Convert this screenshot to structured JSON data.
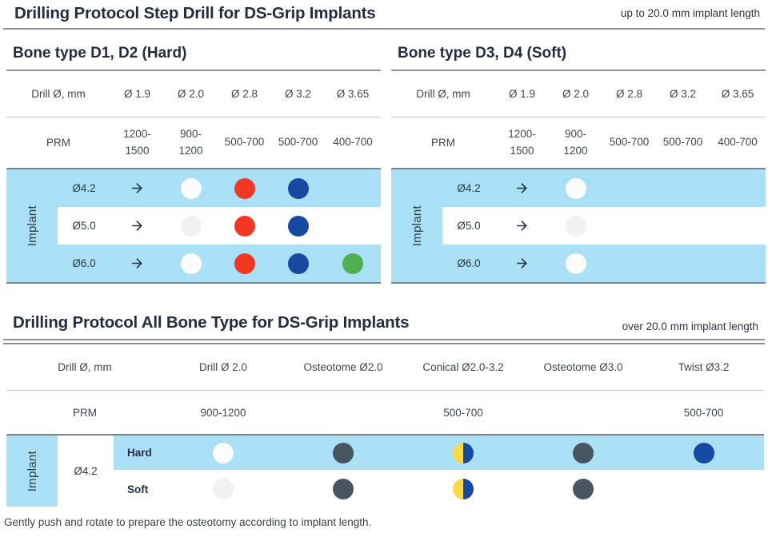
{
  "colors": {
    "accent_blue_bg": "#a9e0f5",
    "title_navy": "#222d42",
    "dot_red": "#f23722",
    "dot_blue": "#1649a1",
    "dot_green": "#4fae4f",
    "dot_gray": "#475560",
    "dot_yellow": "#fcd94b",
    "dot_white": "#fcfcfc",
    "rule_gray": "#8c9196"
  },
  "header": {
    "title": "Drilling Protocol Step Drill for DS-Grip Implants",
    "note": "up to 20.0 mm implant length"
  },
  "step_section": {
    "tables": [
      {
        "heading": "Bone type D1, D2 (Hard)",
        "drill_row": {
          "label": "Drill Ø, mm",
          "sizes": [
            "Ø 1.9",
            "Ø 2.0",
            "Ø 2.8",
            "Ø 3.2",
            "Ø 3.65"
          ]
        },
        "prm_row": {
          "label": "PRM",
          "values": [
            "1200-1500",
            "900-1200",
            "500-700",
            "500-700",
            "400-700"
          ]
        },
        "implant_label": "Implant",
        "rows": [
          {
            "implant": "Ø4.2",
            "cells": [
              "arrow",
              "white",
              "red",
              "blue",
              ""
            ]
          },
          {
            "implant": "Ø5.0",
            "cells": [
              "arrow",
              "white",
              "red",
              "blue",
              ""
            ]
          },
          {
            "implant": "Ø6.0",
            "cells": [
              "arrow",
              "white",
              "red",
              "blue",
              "green"
            ]
          }
        ]
      },
      {
        "heading": "Bone type D3, D4 (Soft)",
        "drill_row": {
          "label": "Drill Ø, mm",
          "sizes": [
            "Ø 1.9",
            "Ø 2.0",
            "Ø 2.8",
            "Ø 3.2",
            "Ø 3.65"
          ]
        },
        "prm_row": {
          "label": "PRM",
          "values": [
            "1200-1500",
            "900-1200",
            "500-700",
            "500-700",
            "400-700"
          ]
        },
        "implant_label": "Implant",
        "rows": [
          {
            "implant": "Ø4.2",
            "cells": [
              "arrow",
              "white",
              "",
              "",
              ""
            ]
          },
          {
            "implant": "Ø5.0",
            "cells": [
              "arrow",
              "white",
              "",
              "",
              ""
            ]
          },
          {
            "implant": "Ø6.0",
            "cells": [
              "arrow",
              "white",
              "",
              "",
              ""
            ]
          }
        ]
      }
    ]
  },
  "all_bone_section": {
    "title": "Drilling Protocol All Bone Type for DS-Grip Implants",
    "note": "over 20.0 mm implant length",
    "table": {
      "drill_row": {
        "label": "Drill Ø, mm",
        "columns": [
          "Drill Ø 2.0",
          "Osteotome Ø2.0",
          "Conical Ø2.0-3.2",
          "Osteotome Ø3.0",
          "Twist Ø3.2"
        ]
      },
      "prm_row": {
        "label": "PRM",
        "values": [
          "900-1200",
          "",
          "500-700",
          "",
          "500-700"
        ]
      },
      "implant_label": "Implant",
      "implant_size": "Ø4.2",
      "rows": [
        {
          "label": "Hard",
          "cells": [
            "white",
            "gray",
            "yellow-blue",
            "gray",
            "blue"
          ]
        },
        {
          "label": "Soft",
          "cells": [
            "white",
            "gray",
            "yellow-blue",
            "gray",
            ""
          ]
        }
      ]
    }
  },
  "footnote": "Gently push and rotate to prepare the osteotomy according to implant length."
}
